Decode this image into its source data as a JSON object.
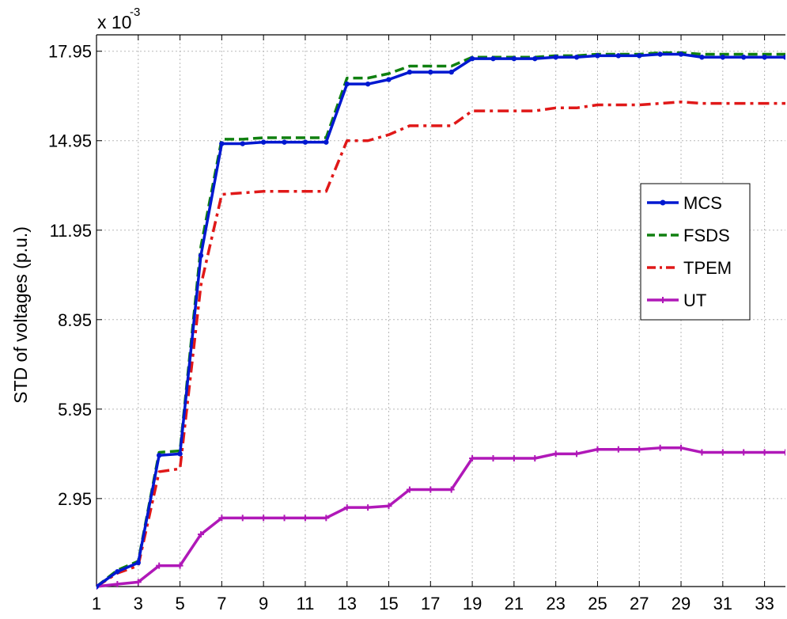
{
  "chart_data": {
    "type": "line",
    "ylabel": "STD of voltages (p.u.)",
    "y_multiplier": "x 10",
    "y_multiplier_exponent": "-3",
    "xlim": [
      1,
      34
    ],
    "ylim": [
      0.0,
      18.5
    ],
    "xticks": [
      1,
      3,
      5,
      7,
      9,
      11,
      13,
      15,
      17,
      19,
      21,
      23,
      25,
      27,
      29,
      31,
      33
    ],
    "xtick_labels": [
      "1",
      "3",
      "5",
      "7",
      "9",
      "11",
      "13",
      "15",
      "17",
      "19",
      "21",
      "23",
      "25",
      "27",
      "29",
      "31",
      "33"
    ],
    "yticks": [
      2.95,
      5.95,
      8.95,
      11.95,
      14.95,
      17.95
    ],
    "ytick_labels": [
      "2.95",
      "5.95",
      "8.95",
      "11.95",
      "14.95",
      "17.95"
    ],
    "grid": true,
    "legend_position": "right",
    "x": [
      1,
      2,
      3,
      4,
      5,
      6,
      7,
      8,
      9,
      10,
      11,
      12,
      13,
      14,
      15,
      16,
      17,
      18,
      19,
      20,
      21,
      22,
      23,
      24,
      25,
      26,
      27,
      28,
      29,
      30,
      31,
      32,
      33,
      34
    ],
    "series": [
      {
        "name": "MCS",
        "color": "#0018d0",
        "style": "solid-dot",
        "values": [
          0.0,
          0.5,
          0.8,
          4.4,
          4.45,
          11.1,
          14.85,
          14.85,
          14.9,
          14.9,
          14.9,
          14.9,
          16.85,
          16.85,
          17.0,
          17.25,
          17.25,
          17.25,
          17.7,
          17.7,
          17.7,
          17.7,
          17.75,
          17.75,
          17.8,
          17.8,
          17.8,
          17.85,
          17.85,
          17.75,
          17.75,
          17.75,
          17.75,
          17.75
        ]
      },
      {
        "name": "FSDS",
        "color": "#108010",
        "style": "dashed",
        "values": [
          0.0,
          0.55,
          0.85,
          4.5,
          4.55,
          11.4,
          15.0,
          15.0,
          15.05,
          15.05,
          15.05,
          15.05,
          17.05,
          17.05,
          17.2,
          17.45,
          17.45,
          17.45,
          17.75,
          17.75,
          17.75,
          17.75,
          17.8,
          17.8,
          17.85,
          17.85,
          17.85,
          17.9,
          17.9,
          17.85,
          17.85,
          17.85,
          17.85,
          17.85
        ]
      },
      {
        "name": "TPEM",
        "color": "#e01818",
        "style": "dash-dot",
        "values": [
          0.0,
          0.45,
          0.7,
          3.85,
          3.95,
          10.1,
          13.15,
          13.2,
          13.25,
          13.25,
          13.25,
          13.25,
          14.95,
          14.95,
          15.15,
          15.45,
          15.45,
          15.45,
          15.95,
          15.95,
          15.95,
          15.95,
          16.05,
          16.05,
          16.15,
          16.15,
          16.15,
          16.2,
          16.25,
          16.2,
          16.2,
          16.2,
          16.2,
          16.2
        ]
      },
      {
        "name": "UT",
        "color": "#b018b8",
        "style": "solid-plus",
        "values": [
          0.0,
          0.08,
          0.15,
          0.7,
          0.7,
          1.75,
          2.3,
          2.3,
          2.3,
          2.3,
          2.3,
          2.3,
          2.65,
          2.65,
          2.7,
          3.25,
          3.25,
          3.25,
          4.3,
          4.3,
          4.3,
          4.3,
          4.45,
          4.45,
          4.6,
          4.6,
          4.6,
          4.65,
          4.65,
          4.5,
          4.5,
          4.5,
          4.5,
          4.5
        ]
      }
    ]
  }
}
